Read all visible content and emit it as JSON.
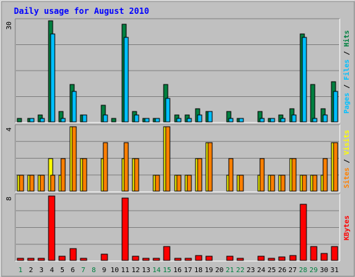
{
  "title": "Daily usage for August 2010",
  "colors": {
    "frame_bg": "#c0c0c0",
    "plot_bg": "#c0c0c0",
    "grid": "#808080",
    "title": "#0000ff",
    "axis_text": "#000000",
    "hits": "#008040",
    "files": "#00c0ff",
    "pages": "#00c0ff",
    "visits": "#ffff00",
    "sites": "#ff8000",
    "kbytes": "#ff0000",
    "weekend_day": "#008040",
    "weekday": "#000000"
  },
  "chart_data": [
    {
      "type": "bar",
      "panel": "hits-files-pages",
      "categories": [
        "1",
        "2",
        "3",
        "4",
        "5",
        "6",
        "7",
        "8",
        "9",
        "10",
        "11",
        "12",
        "13",
        "14",
        "15",
        "16",
        "17",
        "18",
        "19",
        "20",
        "21",
        "22",
        "23",
        "24",
        "25",
        "26",
        "27",
        "28",
        "29",
        "30",
        "31"
      ],
      "ylabel_max": "30",
      "ylim": [
        0,
        30
      ],
      "series": [
        {
          "name": "Hits",
          "values": [
            1,
            1,
            2,
            30,
            3,
            11,
            2,
            0,
            5,
            1,
            29,
            3,
            1,
            1,
            11,
            2,
            2,
            4,
            3,
            0,
            3,
            1,
            0,
            3,
            1,
            2,
            4,
            26,
            11,
            4,
            12
          ]
        },
        {
          "name": "Files",
          "values": [
            0,
            1,
            1,
            26,
            1,
            9,
            2,
            0,
            2,
            0,
            25,
            2,
            1,
            1,
            7,
            1,
            1,
            2,
            3,
            0,
            1,
            1,
            0,
            1,
            1,
            1,
            2,
            25,
            1,
            2,
            9
          ]
        },
        {
          "name": "Pages",
          "values": [
            0,
            0,
            0,
            0,
            0,
            0,
            0,
            0,
            0,
            0,
            0,
            0,
            0,
            0,
            0,
            0,
            0,
            0,
            0,
            0,
            0,
            0,
            0,
            0,
            0,
            0,
            0,
            0,
            0,
            0,
            0
          ]
        }
      ],
      "legend": [
        "Pages",
        "Files",
        "Hits"
      ]
    },
    {
      "type": "bar",
      "panel": "visits-sites",
      "categories": [
        "1",
        "2",
        "3",
        "4",
        "5",
        "6",
        "7",
        "8",
        "9",
        "10",
        "11",
        "12",
        "13",
        "14",
        "15",
        "16",
        "17",
        "18",
        "19",
        "20",
        "21",
        "22",
        "23",
        "24",
        "25",
        "26",
        "27",
        "28",
        "29",
        "30",
        "31"
      ],
      "ylabel_max": "4",
      "ylim": [
        0,
        4
      ],
      "series": [
        {
          "name": "Visits",
          "values": [
            1,
            1,
            1,
            2,
            1,
            4,
            2,
            0,
            2,
            0,
            2,
            2,
            0,
            1,
            4,
            1,
            1,
            2,
            3,
            0,
            1,
            1,
            0,
            1,
            1,
            1,
            2,
            1,
            1,
            1,
            3
          ]
        },
        {
          "name": "Sites",
          "values": [
            1,
            1,
            1,
            1,
            2,
            4,
            2,
            0,
            3,
            0,
            3,
            2,
            0,
            1,
            4,
            1,
            1,
            2,
            3,
            0,
            2,
            1,
            0,
            2,
            1,
            1,
            2,
            1,
            1,
            2,
            3
          ]
        }
      ],
      "legend": [
        "Sites",
        "Visits"
      ]
    },
    {
      "type": "bar",
      "panel": "kbytes",
      "categories": [
        "1",
        "2",
        "3",
        "4",
        "5",
        "6",
        "7",
        "8",
        "9",
        "10",
        "11",
        "12",
        "13",
        "14",
        "15",
        "16",
        "17",
        "18",
        "19",
        "20",
        "21",
        "22",
        "23",
        "24",
        "25",
        "26",
        "27",
        "28",
        "29",
        "30",
        "31"
      ],
      "ylabel_max": "8",
      "ylim": [
        0,
        8
      ],
      "series": [
        {
          "name": "KBytes",
          "values": [
            0.2,
            0.2,
            0.3,
            8,
            0.5,
            1.5,
            0.3,
            0,
            0.8,
            0,
            7.7,
            0.5,
            0.1,
            0.2,
            1.7,
            0.3,
            0.3,
            0.6,
            0.5,
            0,
            0.5,
            0.2,
            0,
            0.5,
            0.2,
            0.4,
            0.6,
            7,
            1.7,
            0.9,
            1.7
          ]
        }
      ],
      "legend": [
        "KBytes"
      ]
    }
  ],
  "x_labels": {
    "weekend_days": [
      "1",
      "7",
      "8",
      "14",
      "15",
      "21",
      "22",
      "28",
      "29"
    ]
  }
}
